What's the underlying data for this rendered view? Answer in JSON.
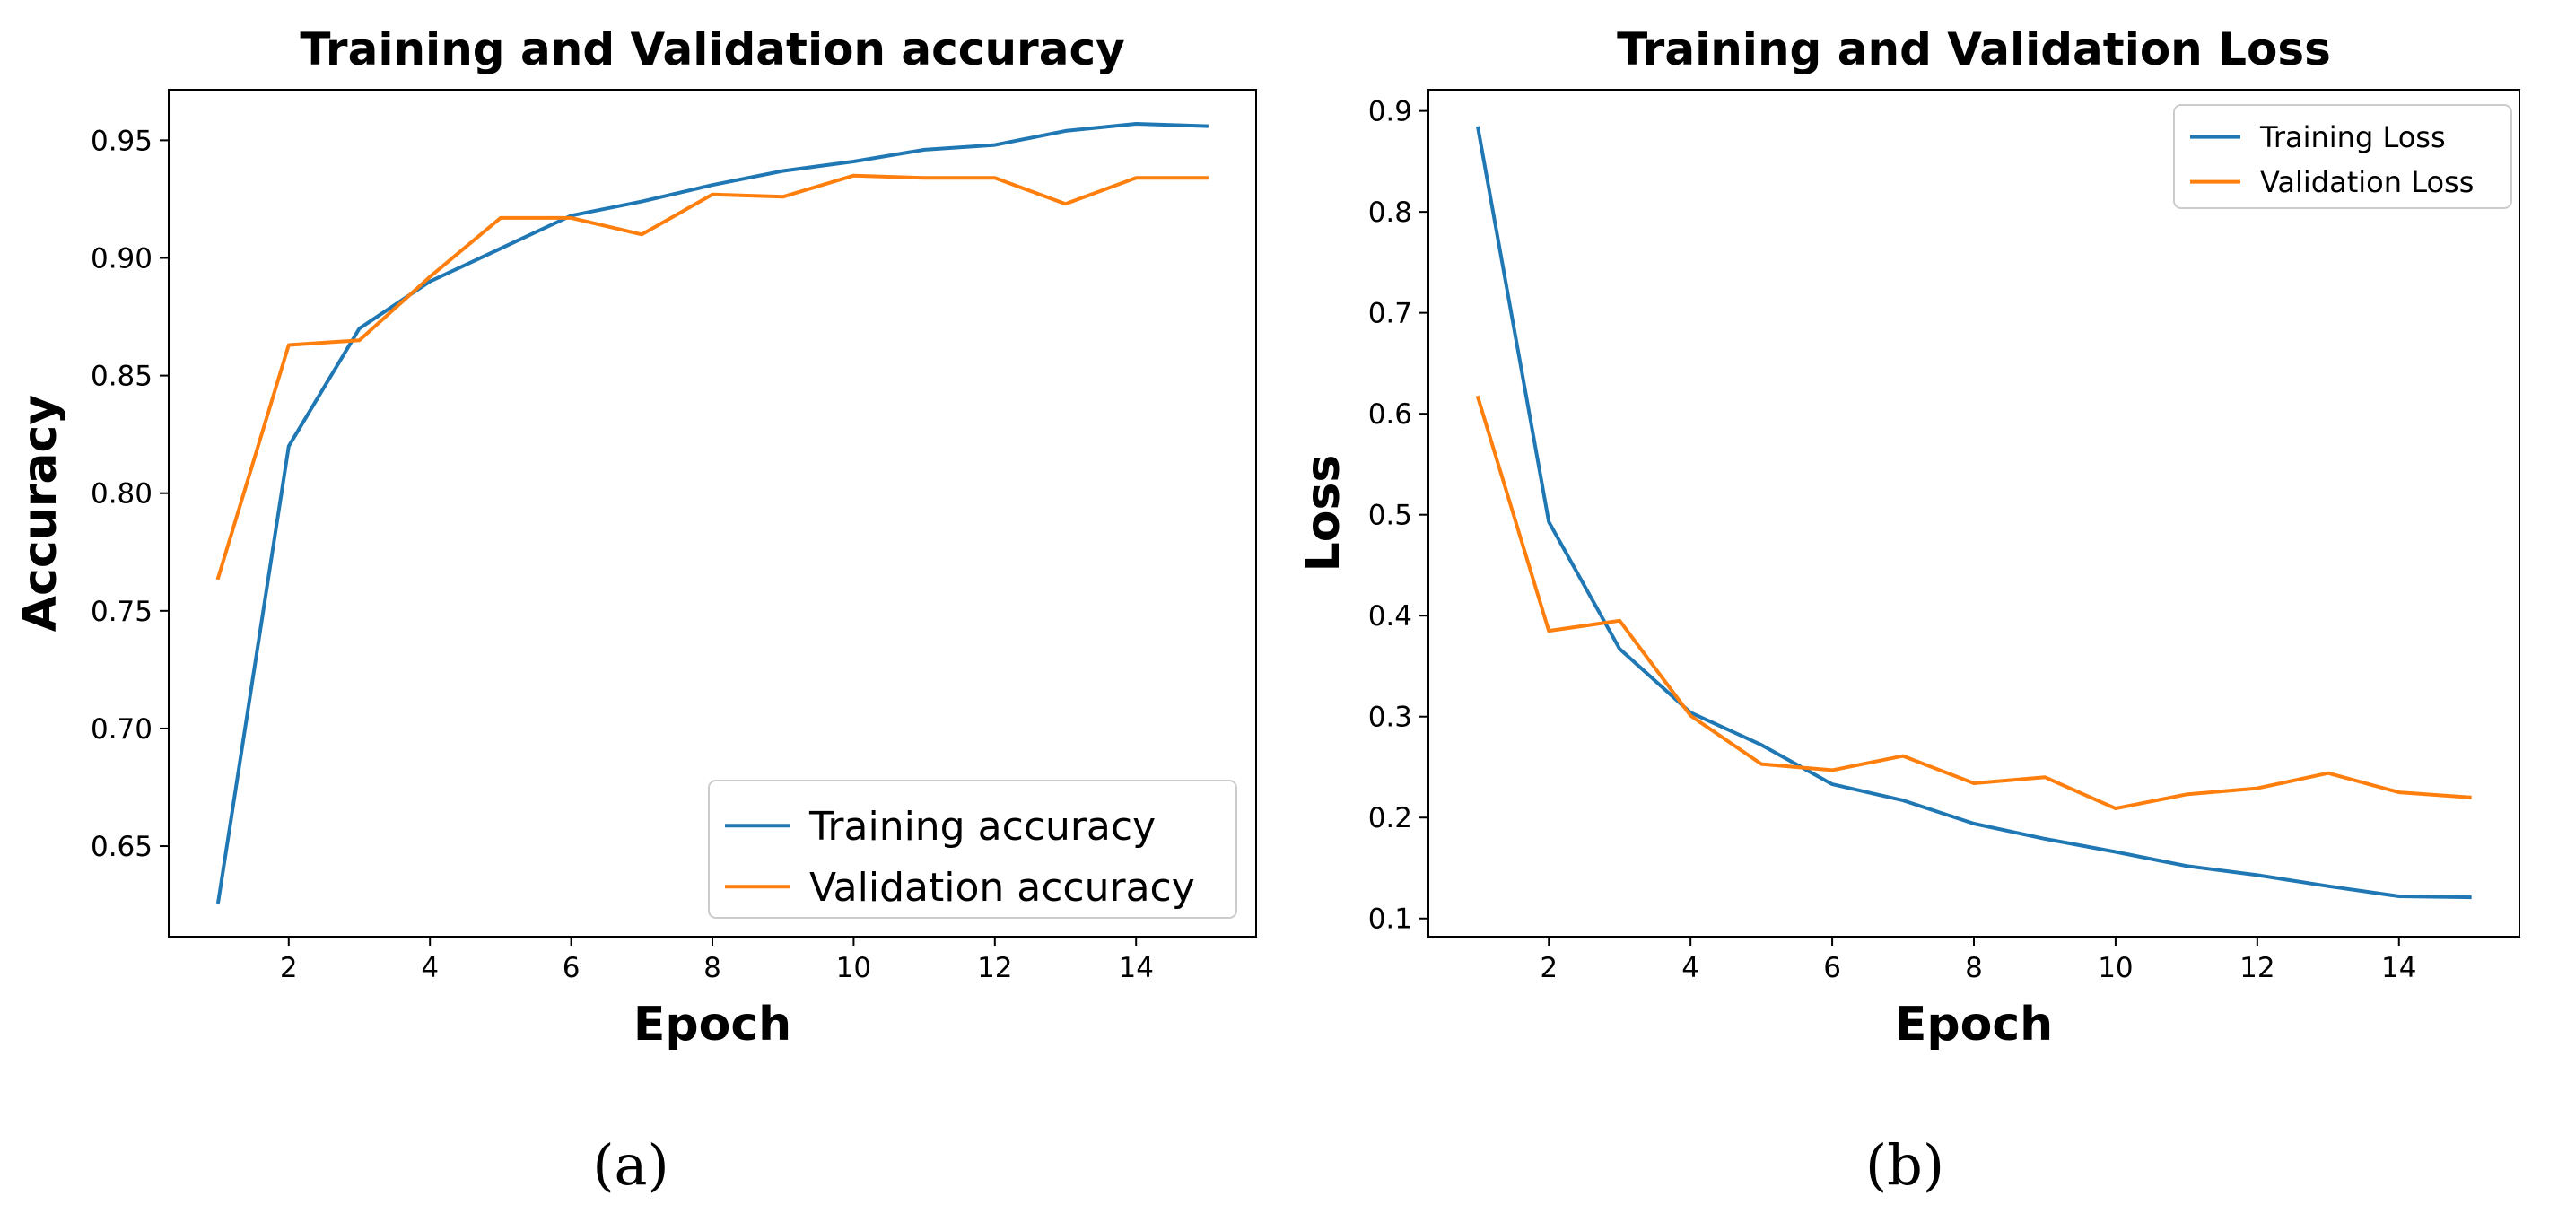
{
  "colors": {
    "training": "#1f77b4",
    "validation": "#ff7f0e"
  },
  "panels": [
    {
      "caption": "(a)"
    },
    {
      "caption": "(b)"
    }
  ],
  "chart_data": [
    {
      "type": "line",
      "title": "Training and Validation accuracy",
      "xlabel": "Epoch",
      "ylabel": "Accuracy",
      "x": [
        1,
        2,
        3,
        4,
        5,
        6,
        7,
        8,
        9,
        10,
        11,
        12,
        13,
        14,
        15
      ],
      "xticks": [
        2,
        4,
        6,
        8,
        10,
        12,
        14
      ],
      "xtick_labels": [
        "2",
        "4",
        "6",
        "8",
        "10",
        "12",
        "14"
      ],
      "yticks": [
        0.65,
        0.7,
        0.75,
        0.8,
        0.85,
        0.9,
        0.95
      ],
      "ytick_labels": [
        "0.65",
        "0.70",
        "0.75",
        "0.80",
        "0.85",
        "0.90",
        "0.95"
      ],
      "xlim": [
        0.3,
        15.7
      ],
      "ylim": [
        0.6115,
        0.9715
      ],
      "legend_position": "lower-right",
      "grid": false,
      "series": [
        {
          "name": "Training accuracy",
          "color_key": "training",
          "values": [
            0.626,
            0.82,
            0.87,
            0.89,
            0.904,
            0.918,
            0.924,
            0.931,
            0.937,
            0.941,
            0.946,
            0.948,
            0.954,
            0.957,
            0.956
          ]
        },
        {
          "name": "Validation accuracy",
          "color_key": "validation",
          "values": [
            0.764,
            0.863,
            0.865,
            0.892,
            0.917,
            0.917,
            0.91,
            0.927,
            0.926,
            0.935,
            0.934,
            0.934,
            0.923,
            0.934,
            0.934
          ]
        }
      ]
    },
    {
      "type": "line",
      "title": "Training and Validation Loss",
      "xlabel": "Epoch",
      "ylabel": "Loss",
      "x": [
        1,
        2,
        3,
        4,
        5,
        6,
        7,
        8,
        9,
        10,
        11,
        12,
        13,
        14,
        15
      ],
      "xticks": [
        2,
        4,
        6,
        8,
        10,
        12,
        14
      ],
      "xtick_labels": [
        "2",
        "4",
        "6",
        "8",
        "10",
        "12",
        "14"
      ],
      "yticks": [
        0.1,
        0.2,
        0.3,
        0.4,
        0.5,
        0.6,
        0.7,
        0.8,
        0.9
      ],
      "ytick_labels": [
        "0.1",
        "0.2",
        "0.3",
        "0.4",
        "0.5",
        "0.6",
        "0.7",
        "0.8",
        "0.9"
      ],
      "xlim": [
        0.3,
        15.7
      ],
      "ylim": [
        0.082,
        0.921
      ],
      "legend_position": "upper-right",
      "grid": false,
      "series": [
        {
          "name": "Training Loss",
          "color_key": "training",
          "values": [
            0.883,
            0.493,
            0.367,
            0.304,
            0.272,
            0.233,
            0.217,
            0.194,
            0.179,
            0.166,
            0.152,
            0.143,
            0.132,
            0.122,
            0.121
          ]
        },
        {
          "name": "Validation Loss",
          "color_key": "validation",
          "values": [
            0.616,
            0.385,
            0.395,
            0.301,
            0.253,
            0.247,
            0.261,
            0.234,
            0.24,
            0.209,
            0.223,
            0.229,
            0.244,
            0.225,
            0.22
          ]
        }
      ]
    }
  ]
}
